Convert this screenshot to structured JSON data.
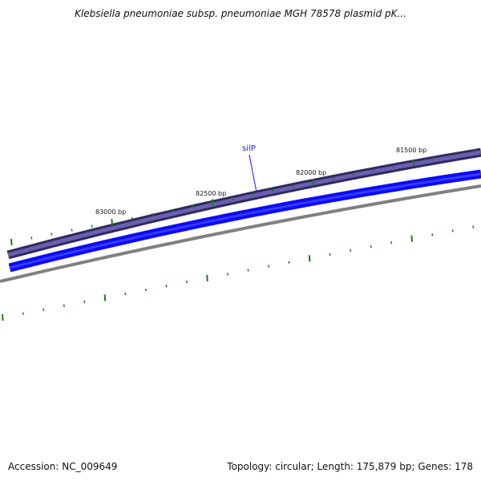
{
  "title": "Klebsiella pneumoniae subsp. pneumoniae MGH 78578 plasmid pK...",
  "accession": "Accession: NC_009649",
  "summary": "Topology: circular; Length: 175,879 bp; Genes: 178",
  "colors": {
    "feature_track_fill": "#5a4f9e",
    "feature_track_edge": "#2e2a5e",
    "cds_track": "#0a0aff",
    "backbone": "#808080",
    "ticks": "#1a7a1a",
    "gene_label": "#1a1aff"
  },
  "scale": {
    "labels": [
      "83000 bp",
      "82500 bp",
      "82000 bp",
      "81500 bp"
    ]
  },
  "features": [
    {
      "name": "silP"
    }
  ]
}
